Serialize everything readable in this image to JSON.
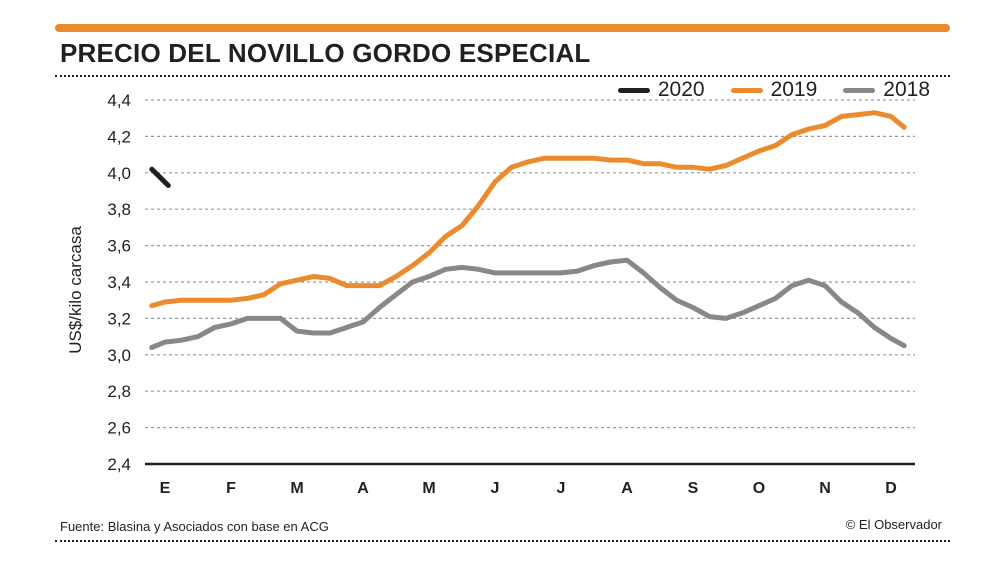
{
  "header": {
    "title": "PRECIO DEL NOVILLO GORDO ESPECIAL"
  },
  "footer": {
    "source": "Fuente: Blasina y Asociados con base en ACG",
    "credit": "© El Observador"
  },
  "colors": {
    "accent": "#ec8a2e",
    "series_2020": "#231f20",
    "series_2019": "#ec8a2e",
    "series_2018": "#8b8687"
  },
  "chart_data": {
    "type": "line",
    "title": "PRECIO DEL NOVILLO GORDO ESPECIAL",
    "xlabel": "",
    "ylabel": "US$/kilo carcasa",
    "ylim": [
      2.4,
      4.4
    ],
    "yticks": [
      2.4,
      2.6,
      2.8,
      3.0,
      3.2,
      3.4,
      3.6,
      3.8,
      4.0,
      4.2,
      4.4
    ],
    "ytick_labels": [
      "2,4",
      "2,6",
      "2,8",
      "3,0",
      "3,2",
      "3,4",
      "3,6",
      "3,8",
      "4,0",
      "4,2",
      "4,4"
    ],
    "categories": [
      "E",
      "F",
      "M",
      "A",
      "M",
      "J",
      "J",
      "A",
      "S",
      "O",
      "N",
      "D"
    ],
    "x_unit": "month index (0 = E, 11 = D)",
    "grid": true,
    "legend_position": "top-right",
    "series": [
      {
        "name": "2020",
        "color": "#231f20",
        "x": [
          -0.2,
          0.05
        ],
        "values": [
          4.02,
          3.93
        ]
      },
      {
        "name": "2019",
        "color": "#ec8a2e",
        "x": [
          -0.2,
          0.0,
          0.25,
          0.5,
          0.75,
          1.0,
          1.25,
          1.5,
          1.75,
          2.0,
          2.25,
          2.5,
          2.75,
          3.0,
          3.25,
          3.5,
          3.75,
          4.0,
          4.25,
          4.5,
          4.75,
          5.0,
          5.25,
          5.5,
          5.75,
          6.0,
          6.25,
          6.5,
          6.75,
          7.0,
          7.25,
          7.5,
          7.75,
          8.0,
          8.25,
          8.5,
          8.75,
          9.0,
          9.25,
          9.5,
          9.75,
          10.0,
          10.25,
          10.5,
          10.75,
          11.0,
          11.2
        ],
        "values": [
          3.27,
          3.29,
          3.3,
          3.3,
          3.3,
          3.3,
          3.31,
          3.33,
          3.39,
          3.41,
          3.43,
          3.42,
          3.38,
          3.38,
          3.38,
          3.43,
          3.49,
          3.56,
          3.65,
          3.71,
          3.82,
          3.95,
          4.03,
          4.06,
          4.08,
          4.08,
          4.08,
          4.08,
          4.07,
          4.07,
          4.05,
          4.05,
          4.03,
          4.03,
          4.02,
          4.04,
          4.08,
          4.12,
          4.15,
          4.21,
          4.24,
          4.26,
          4.31,
          4.32,
          4.33,
          4.31,
          4.25
        ]
      },
      {
        "name": "2018",
        "color": "#8b8687",
        "x": [
          -0.2,
          0.0,
          0.25,
          0.5,
          0.75,
          1.0,
          1.25,
          1.5,
          1.75,
          2.0,
          2.25,
          2.5,
          2.75,
          3.0,
          3.25,
          3.5,
          3.75,
          4.0,
          4.25,
          4.5,
          4.75,
          5.0,
          5.25,
          5.5,
          5.75,
          6.0,
          6.25,
          6.5,
          6.75,
          7.0,
          7.25,
          7.5,
          7.75,
          8.0,
          8.25,
          8.5,
          8.75,
          9.0,
          9.25,
          9.5,
          9.75,
          10.0,
          10.25,
          10.5,
          10.75,
          11.0,
          11.2
        ],
        "values": [
          3.04,
          3.07,
          3.08,
          3.1,
          3.15,
          3.17,
          3.2,
          3.2,
          3.2,
          3.13,
          3.12,
          3.12,
          3.15,
          3.18,
          3.26,
          3.33,
          3.4,
          3.43,
          3.47,
          3.48,
          3.47,
          3.45,
          3.45,
          3.45,
          3.45,
          3.45,
          3.46,
          3.49,
          3.51,
          3.52,
          3.45,
          3.37,
          3.3,
          3.26,
          3.21,
          3.2,
          3.23,
          3.27,
          3.31,
          3.38,
          3.41,
          3.38,
          3.29,
          3.23,
          3.15,
          3.09,
          3.05
        ]
      }
    ]
  }
}
